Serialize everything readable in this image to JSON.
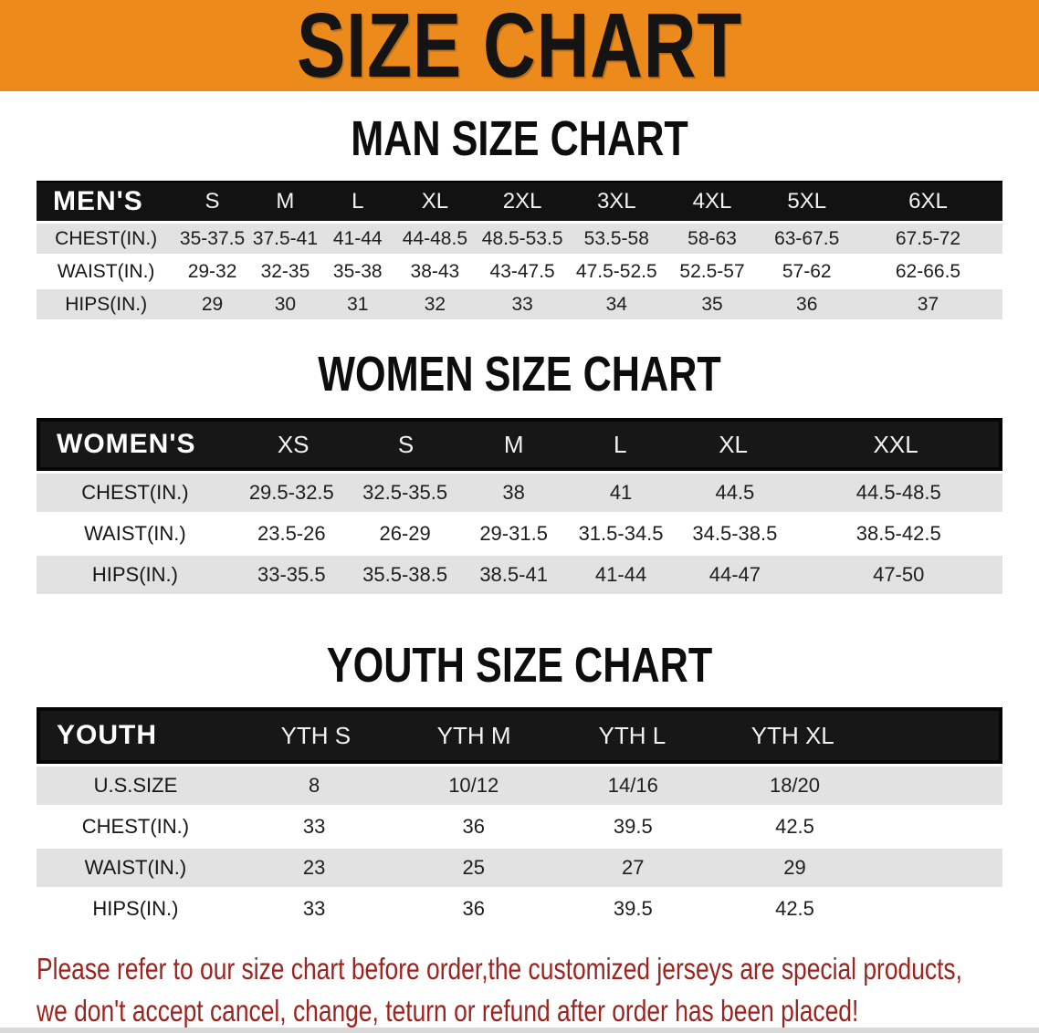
{
  "banner": {
    "title": "SIZE CHART",
    "bg_color": "#ED8A1C",
    "text_color": "#141414"
  },
  "tables": {
    "man": {
      "title": "MAN SIZE CHART",
      "header_label": "MEN'S",
      "columns": [
        "S",
        "M",
        "L",
        "XL",
        "2XL",
        "3XL",
        "4XL",
        "5XL",
        "6XL"
      ],
      "rows": [
        {
          "label": "CHEST(IN.)",
          "values": [
            "35-37.5",
            "37.5-41",
            "41-44",
            "44-48.5",
            "48.5-53.5",
            "53.5-58",
            "58-63",
            "63-67.5",
            "67.5-72"
          ]
        },
        {
          "label": "WAIST(IN.)",
          "values": [
            "29-32",
            "32-35",
            "35-38",
            "38-43",
            "43-47.5",
            "47.5-52.5",
            "52.5-57",
            "57-62",
            "62-66.5"
          ]
        },
        {
          "label": "HIPS(IN.)",
          "values": [
            "29",
            "30",
            "31",
            "32",
            "33",
            "34",
            "35",
            "36",
            "37"
          ]
        }
      ]
    },
    "women": {
      "title": "WOMEN SIZE CHART",
      "header_label": "WOMEN'S",
      "columns": [
        "XS",
        "S",
        "M",
        "L",
        "XL",
        "XXL"
      ],
      "rows": [
        {
          "label": "CHEST(IN.)",
          "values": [
            "29.5-32.5",
            "32.5-35.5",
            "38",
            "41",
            "44.5",
            "44.5-48.5"
          ]
        },
        {
          "label": "WAIST(IN.)",
          "values": [
            "23.5-26",
            "26-29",
            "29-31.5",
            "31.5-34.5",
            "34.5-38.5",
            "38.5-42.5"
          ]
        },
        {
          "label": "HIPS(IN.)",
          "values": [
            "33-35.5",
            "35.5-38.5",
            "38.5-41",
            "41-44",
            "44-47",
            "47-50"
          ]
        }
      ]
    },
    "youth": {
      "title": "YOUTH SIZE CHART",
      "header_label": "YOUTH",
      "columns": [
        "YTH S",
        "YTH M",
        "YTH L",
        "YTH XL"
      ],
      "rows": [
        {
          "label": "U.S.SIZE",
          "values": [
            "8",
            "10/12",
            "14/16",
            "18/20"
          ]
        },
        {
          "label": "CHEST(IN.)",
          "values": [
            "33",
            "36",
            "39.5",
            "42.5"
          ]
        },
        {
          "label": "WAIST(IN.)",
          "values": [
            "23",
            "25",
            "27",
            "29"
          ]
        },
        {
          "label": "HIPS(IN.)",
          "values": [
            "33",
            "36",
            "39.5",
            "42.5"
          ]
        }
      ]
    }
  },
  "disclaimer": {
    "line1": "Please refer to our size chart before order,the customized jerseys are special products,",
    "line2": "we don't accept cancel, change, teturn or refund after order has been placed!",
    "color": "#9B2420"
  }
}
